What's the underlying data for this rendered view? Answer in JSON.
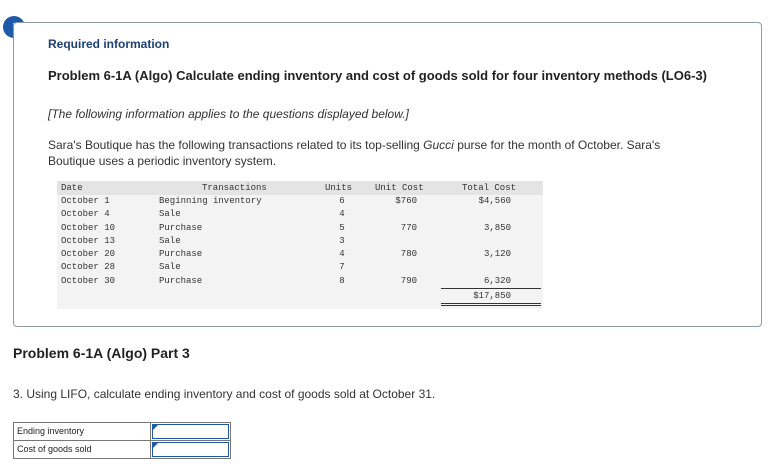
{
  "alert_icon": "!",
  "info": {
    "heading": "Required information",
    "problem_title": "Problem 6-1A (Algo) Calculate ending inventory and cost of goods sold for four inventory methods (LO6-3)",
    "note": "[The following information applies to the questions displayed below.]",
    "description_before": "Sara's Boutique has the following transactions related to its top-selling ",
    "description_em": "Gucci",
    "description_after": " purse for the month of October. Sara's Boutique uses a periodic inventory system."
  },
  "table": {
    "headers": [
      "Date",
      "Transactions",
      "Units",
      "Unit Cost",
      "Total Cost"
    ],
    "rows": [
      [
        "October 1",
        "Beginning inventory",
        "6",
        "$760",
        "$4,560"
      ],
      [
        "October 4",
        "Sale",
        "4",
        "",
        ""
      ],
      [
        "October 10",
        "Purchase",
        "5",
        "770",
        "3,850"
      ],
      [
        "October 13",
        "Sale",
        "3",
        "",
        ""
      ],
      [
        "October 20",
        "Purchase",
        "4",
        "780",
        "3,120"
      ],
      [
        "October 28",
        "Sale",
        "7",
        "",
        ""
      ],
      [
        "October 30",
        "Purchase",
        "8",
        "790",
        "6,320"
      ]
    ],
    "total": "$17,850"
  },
  "part_title": "Problem 6-1A (Algo) Part 3",
  "question": "3. Using LIFO, calculate ending inventory and cost of goods sold at October 31.",
  "answer": {
    "rows": [
      {
        "label": "Ending inventory",
        "value": ""
      },
      {
        "label": "Cost of goods sold",
        "value": ""
      }
    ]
  },
  "colors": {
    "accent": "#1e5aa8",
    "heading": "#1d3f78"
  }
}
